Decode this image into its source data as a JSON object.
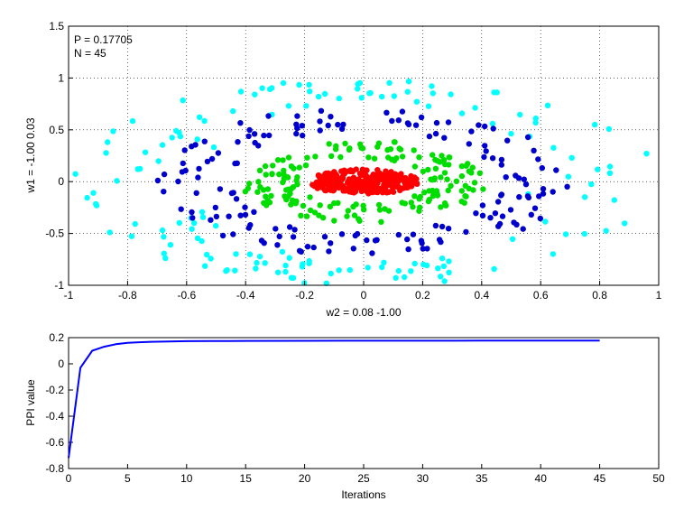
{
  "chart_data": [
    {
      "type": "scatter",
      "annotation_lines": [
        "P = 0.17705",
        "N = 45"
      ],
      "xlabel": "w2 = 0.08  -1.00",
      "ylabel": "w1 = -1.00  0.03",
      "xlim": [
        -1,
        1
      ],
      "ylim": [
        -1,
        1.5
      ],
      "x_ticks": [
        "-1",
        "-0.8",
        "-0.6",
        "-0.4",
        "-0.2",
        "0",
        "0.2",
        "0.4",
        "0.6",
        "0.8",
        "1"
      ],
      "y_ticks": [
        "1.5",
        "1",
        "0.5",
        "0",
        "-0.5",
        "-1"
      ],
      "grid": true,
      "clusters": [
        {
          "color": "#00ffff",
          "shape": "ring",
          "center": [
            0,
            0
          ],
          "radius_x_min": 0.55,
          "radius_x_max": 1.0,
          "radius_y_min": 0.78,
          "radius_y_max": 1.0,
          "count": 150
        },
        {
          "color": "#0000cc",
          "shape": "ring",
          "center": [
            0,
            0
          ],
          "radius_x_min": 0.45,
          "radius_x_max": 0.7,
          "radius_y_min": 0.5,
          "radius_y_max": 0.72,
          "count": 160
        },
        {
          "color": "#00dd00",
          "shape": "ring",
          "center": [
            0,
            0
          ],
          "radius_x_min": 0.22,
          "radius_x_max": 0.42,
          "radius_y_min": 0.22,
          "radius_y_max": 0.4,
          "count": 170
        },
        {
          "color": "#ff0000",
          "shape": "blob",
          "center": [
            0,
            0
          ],
          "radius_x": 0.19,
          "radius_y": 0.16,
          "count": 260
        }
      ]
    },
    {
      "type": "line",
      "xlabel": "Iterations",
      "ylabel": "PPI value",
      "xlim": [
        0,
        50
      ],
      "ylim": [
        -0.8,
        0.2
      ],
      "x_ticks": [
        "0",
        "5",
        "10",
        "15",
        "20",
        "25",
        "30",
        "35",
        "40",
        "45",
        "50"
      ],
      "y_ticks": [
        "0.2",
        "0",
        "-0.2",
        "-0.4",
        "-0.6",
        "-0.8"
      ],
      "grid": false,
      "series": [
        {
          "color": "#0000ff",
          "x": [
            0,
            1,
            2,
            3,
            4,
            5,
            6,
            7,
            8,
            10,
            12,
            15,
            20,
            25,
            30,
            35,
            40,
            45
          ],
          "y": [
            -0.72,
            -0.03,
            0.1,
            0.13,
            0.15,
            0.16,
            0.165,
            0.168,
            0.17,
            0.173,
            0.174,
            0.175,
            0.176,
            0.1765,
            0.1768,
            0.177,
            0.177,
            0.17705
          ]
        }
      ]
    }
  ]
}
